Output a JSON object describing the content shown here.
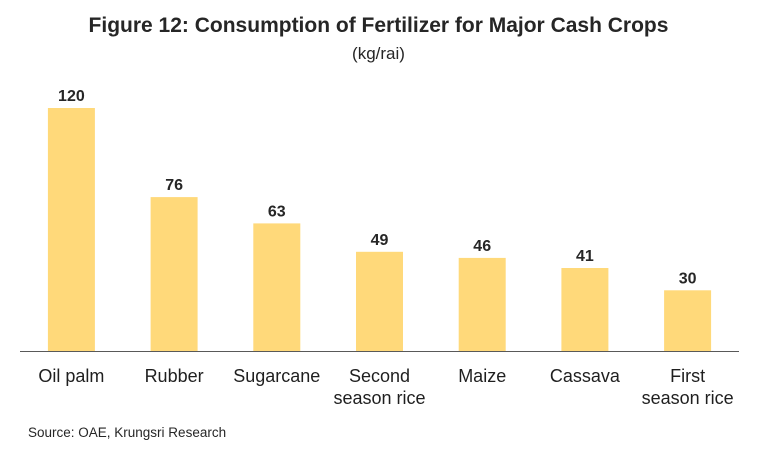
{
  "chart_data": {
    "type": "bar",
    "title": "Figure 12: Consumption  of Fertilizer for Major Cash Crops",
    "subtitle": "(kg/rai)",
    "categories": [
      [
        "Oil palm"
      ],
      [
        "Rubber"
      ],
      [
        "Sugarcane"
      ],
      [
        "Second",
        "season rice"
      ],
      [
        "Maize"
      ],
      [
        "Cassava"
      ],
      [
        "First",
        "season rice"
      ]
    ],
    "values": [
      120,
      76,
      63,
      49,
      46,
      41,
      30
    ],
    "data_labels": [
      "120",
      "76",
      "63",
      "49",
      "46",
      "41",
      "30"
    ],
    "ylim": [
      0,
      120
    ],
    "bar_color": "#ffd97a",
    "axis_color": "#595959",
    "grid": false,
    "legend": "none",
    "xlabel": "",
    "ylabel": ""
  },
  "source": "Source: OAE,  Krungsri Research"
}
